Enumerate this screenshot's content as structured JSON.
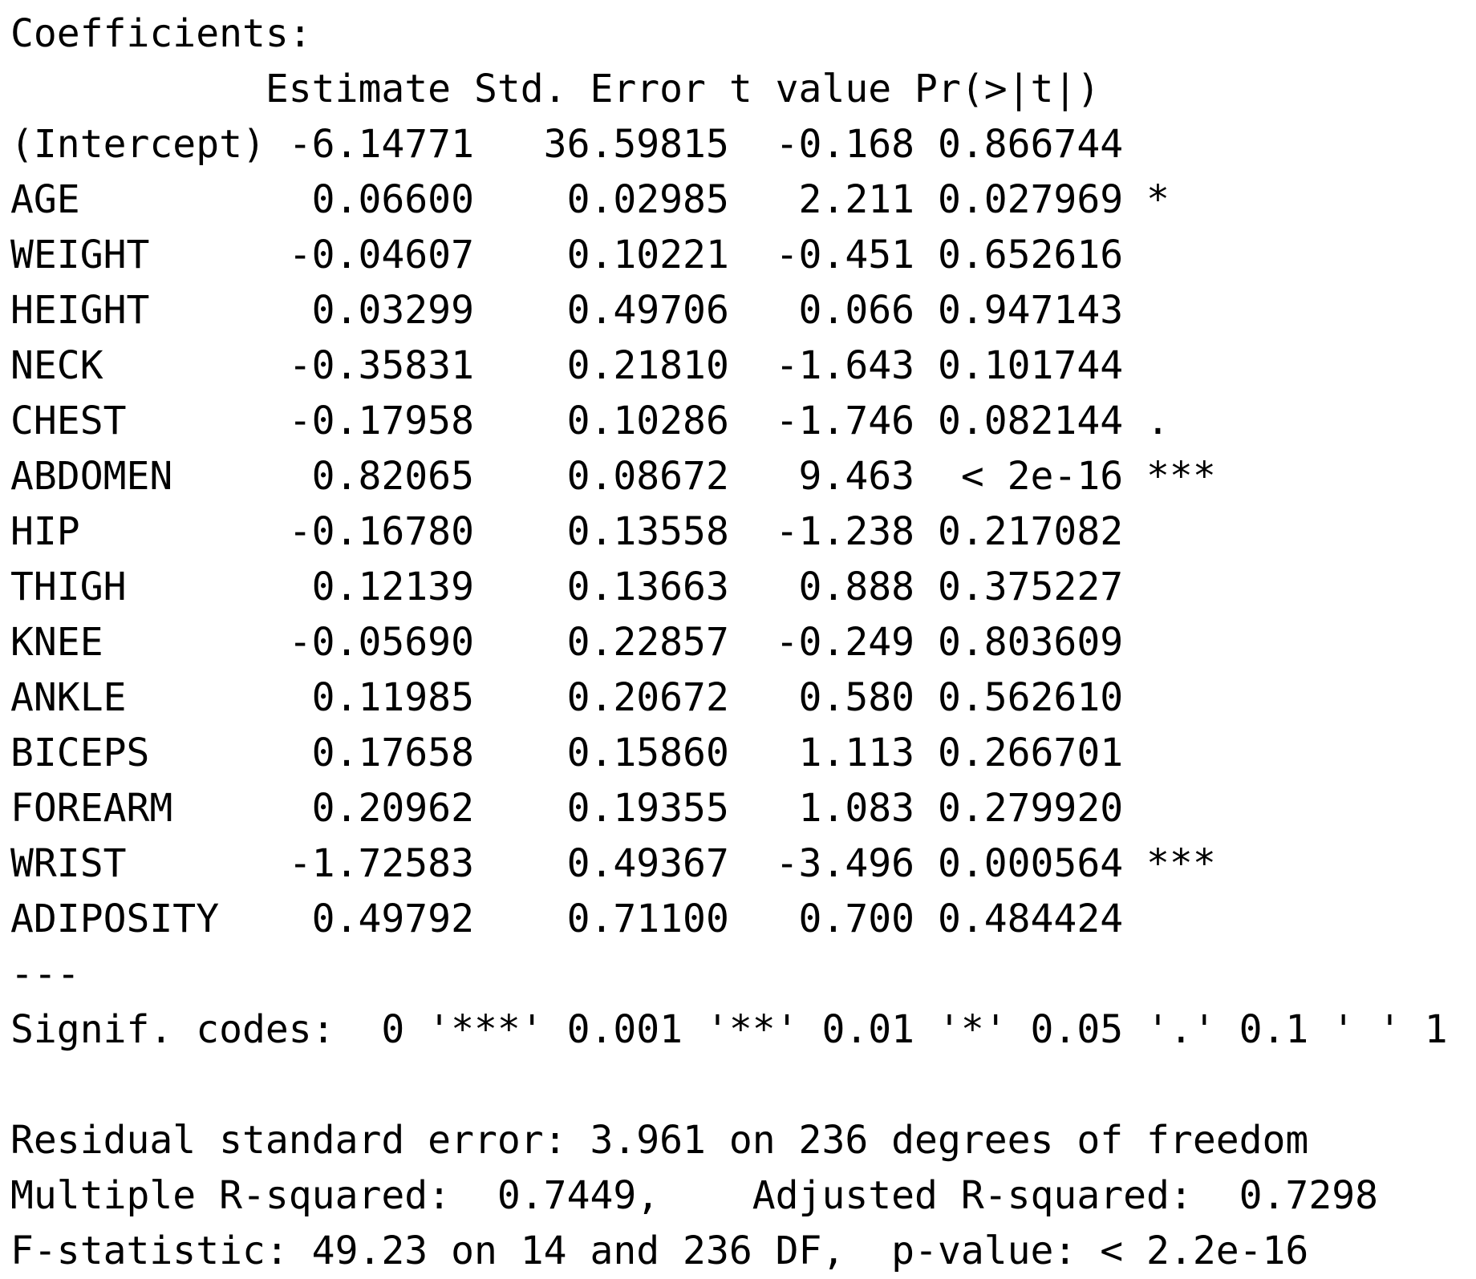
{
  "title": "Coefficients:",
  "header": "           Estimate Std. Error t value Pr(>|t|)    ",
  "rows": [
    "(Intercept) -6.14771   36.59815  -0.168 0.866744    ",
    "AGE          0.06600    0.02985   2.211 0.027969 *  ",
    "WEIGHT      -0.04607    0.10221  -0.451 0.652616    ",
    "HEIGHT       0.03299    0.49706   0.066 0.947143    ",
    "NECK        -0.35831    0.21810  -1.643 0.101744    ",
    "CHEST       -0.17958    0.10286  -1.746 0.082144 .  ",
    "ABDOMEN      0.82065    0.08672   9.463  < 2e-16 ***",
    "HIP         -0.16780    0.13558  -1.238 0.217082    ",
    "THIGH        0.12139    0.13663   0.888 0.375227    ",
    "KNEE        -0.05690    0.22857  -0.249 0.803609    ",
    "ANKLE        0.11985    0.20672   0.580 0.562610    ",
    "BICEPS       0.17658    0.15860   1.113 0.266701    ",
    "FOREARM      0.20962    0.19355   1.083 0.279920    ",
    "WRIST       -1.72583    0.49367  -3.496 0.000564 ***",
    "ADIPOSITY    0.49792    0.71100   0.700 0.484424    "
  ],
  "separator": "---",
  "signif_codes": "Signif. codes:  0 '***' 0.001 '**' 0.01 '*' 0.05 '.' 0.1 ' ' 1",
  "residual_se": "Residual standard error: 3.961 on 236 degrees of freedom",
  "r_squared": "Multiple R-squared:  0.7449,    Adjusted R-squared:  0.7298",
  "f_statistic": "F-statistic: 49.23 on 14 and 236 DF,  p-value: < 2.2e-16"
}
